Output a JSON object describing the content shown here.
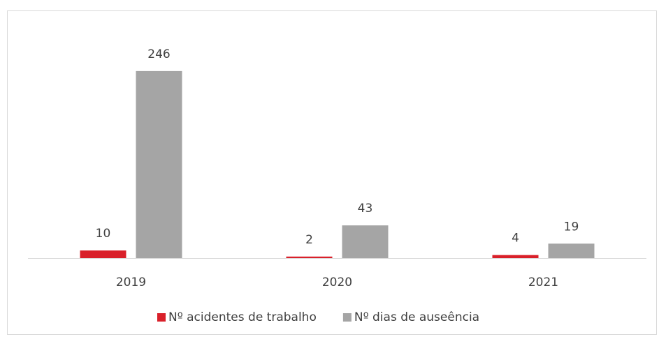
{
  "chart_data": {
    "type": "bar",
    "categories": [
      "2019",
      "2020",
      "2021"
    ],
    "series": [
      {
        "name": "Nº acidentes de trabalho",
        "color": "#d9202a",
        "values": [
          10,
          2,
          4
        ]
      },
      {
        "name": "Nº dias de auseência",
        "color": "#a5a5a5",
        "values": [
          246,
          43,
          19
        ]
      }
    ],
    "ylim": [
      0,
      300
    ],
    "legend": "bottom"
  }
}
